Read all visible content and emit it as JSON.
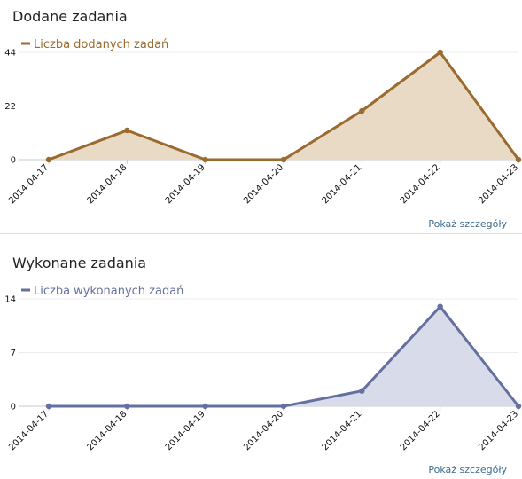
{
  "charts": [
    {
      "id": "added",
      "title": "Dodane zadania",
      "details_label": "Pokaż szczegóły",
      "color": "#9a6a2e",
      "fill": "#e8dac4",
      "chart_data": {
        "type": "area",
        "x": [
          "2014-04-17",
          "2014-04-18",
          "2014-04-19",
          "2014-04-20",
          "2014-04-21",
          "2014-04-22",
          "2014-04-23"
        ],
        "series": [
          {
            "name": "Liczba dodanych zadań",
            "values": [
              0,
              12,
              0,
              0,
              20,
              44,
              0
            ]
          }
        ],
        "ylim": [
          0,
          44
        ],
        "yticks": [
          0,
          22,
          44
        ],
        "grid": true,
        "legend": "top-left"
      }
    },
    {
      "id": "done",
      "title": "Wykonane zadania",
      "details_label": "Pokaż szczegóły",
      "color": "#6470a0",
      "fill": "#d8dbe9",
      "chart_data": {
        "type": "area",
        "x": [
          "2014-04-17",
          "2014-04-18",
          "2014-04-19",
          "2014-04-20",
          "2014-04-21",
          "2014-04-22",
          "2014-04-23"
        ],
        "series": [
          {
            "name": "Liczba wykonanych zadań",
            "values": [
              0,
              0,
              0,
              0,
              2,
              13,
              0
            ]
          }
        ],
        "ylim": [
          0,
          14
        ],
        "yticks": [
          0,
          7,
          14
        ],
        "grid": true,
        "legend": "top-left"
      }
    }
  ]
}
